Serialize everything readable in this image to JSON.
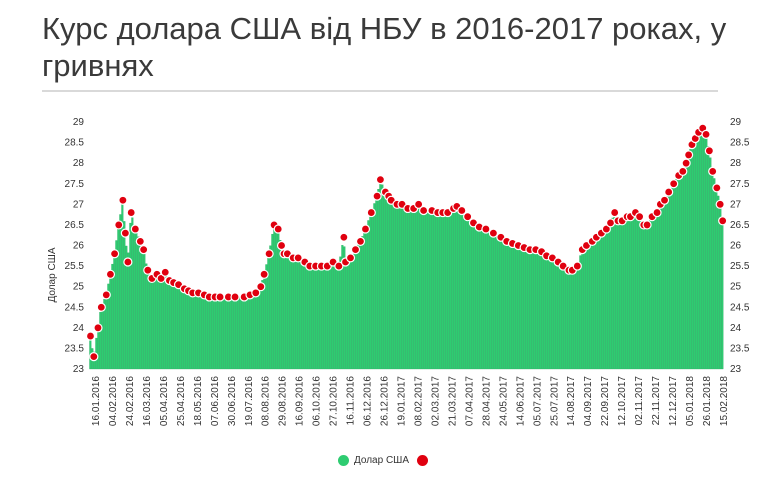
{
  "title": "Курс долара США від НБУ в 2016-2017 роках, у гривнях",
  "chart_data": {
    "type": "area",
    "ylabel": "Долар США",
    "ylim": [
      23,
      29
    ],
    "yticks": [
      "23",
      "23.5",
      "24",
      "24.5",
      "25",
      "25.5",
      "26",
      "26.5",
      "27",
      "27.5",
      "28",
      "28.5",
      "29"
    ],
    "xticks": [
      "16.01.2016",
      "04.02.2016",
      "24.02.2016",
      "16.03.2016",
      "05.04.2016",
      "25.04.2016",
      "18.05.2016",
      "07.06.2016",
      "30.06.2016",
      "19.07.2016",
      "08.08.2016",
      "29.08.2016",
      "16.09.2016",
      "06.10.2016",
      "27.10.2016",
      "16.11.2016",
      "06.12.2016",
      "26.12.2016",
      "19.01.2017",
      "08.02.2017",
      "02.03.2017",
      "21.03.2017",
      "07.04.2017",
      "28.04.2017",
      "24.05.2017",
      "14.06.2017",
      "05.07.2017",
      "25.07.2017",
      "14.08.2017",
      "04.09.2017",
      "22.09.2017",
      "12.10.2017",
      "02.11.2017",
      "22.11.2017",
      "12.12.2017",
      "05.01.2018",
      "26.01.2018",
      "15.02.2018"
    ],
    "series": [
      {
        "name": "Долар США",
        "color_fill": "#2ecc71",
        "color_marker": "#e0000f",
        "x": [
          "2016-01-16",
          "2016-01-20",
          "2016-01-25",
          "2016-01-29",
          "2016-02-04",
          "2016-02-09",
          "2016-02-14",
          "2016-02-19",
          "2016-02-24",
          "2016-02-27",
          "2016-03-01",
          "2016-03-05",
          "2016-03-10",
          "2016-03-16",
          "2016-03-20",
          "2016-03-25",
          "2016-03-30",
          "2016-04-05",
          "2016-04-10",
          "2016-04-15",
          "2016-04-20",
          "2016-04-25",
          "2016-05-01",
          "2016-05-08",
          "2016-05-13",
          "2016-05-18",
          "2016-05-25",
          "2016-06-01",
          "2016-06-07",
          "2016-06-14",
          "2016-06-20",
          "2016-06-30",
          "2016-07-08",
          "2016-07-19",
          "2016-07-26",
          "2016-08-02",
          "2016-08-08",
          "2016-08-12",
          "2016-08-18",
          "2016-08-24",
          "2016-08-29",
          "2016-09-02",
          "2016-09-05",
          "2016-09-09",
          "2016-09-16",
          "2016-09-22",
          "2016-09-30",
          "2016-10-06",
          "2016-10-13",
          "2016-10-20",
          "2016-10-27",
          "2016-11-03",
          "2016-11-10",
          "2016-11-16",
          "2016-11-18",
          "2016-11-24",
          "2016-11-30",
          "2016-12-06",
          "2016-12-12",
          "2016-12-19",
          "2016-12-26",
          "2016-12-30",
          "2017-01-05",
          "2017-01-09",
          "2017-01-12",
          "2017-01-19",
          "2017-01-25",
          "2017-02-01",
          "2017-02-08",
          "2017-02-14",
          "2017-02-20",
          "2017-03-02",
          "2017-03-09",
          "2017-03-15",
          "2017-03-21",
          "2017-03-28",
          "2017-04-01",
          "2017-04-07",
          "2017-04-14",
          "2017-04-21",
          "2017-04-28",
          "2017-05-06",
          "2017-05-15",
          "2017-05-24",
          "2017-05-31",
          "2017-06-07",
          "2017-06-14",
          "2017-06-21",
          "2017-06-28",
          "2017-07-05",
          "2017-07-12",
          "2017-07-18",
          "2017-07-25",
          "2017-08-01",
          "2017-08-07",
          "2017-08-14",
          "2017-08-18",
          "2017-08-24",
          "2017-08-30",
          "2017-09-04",
          "2017-09-11",
          "2017-09-16",
          "2017-09-22",
          "2017-09-28",
          "2017-10-03",
          "2017-10-08",
          "2017-10-12",
          "2017-10-17",
          "2017-10-23",
          "2017-10-27",
          "2017-11-02",
          "2017-11-07",
          "2017-11-12",
          "2017-11-16",
          "2017-11-22",
          "2017-11-28",
          "2017-12-02",
          "2017-12-07",
          "2017-12-12",
          "2017-12-18",
          "2017-12-24",
          "2017-12-29",
          "2018-01-02",
          "2018-01-05",
          "2018-01-09",
          "2018-01-13",
          "2018-01-17",
          "2018-01-22",
          "2018-01-26",
          "2018-01-30",
          "2018-02-03",
          "2018-02-08",
          "2018-02-12",
          "2018-02-15"
        ],
        "y": [
          23.8,
          23.3,
          24.0,
          24.5,
          24.8,
          25.3,
          25.8,
          26.5,
          27.1,
          26.3,
          25.6,
          26.8,
          26.4,
          26.1,
          25.9,
          25.4,
          25.2,
          25.3,
          25.2,
          25.35,
          25.15,
          25.1,
          25.05,
          24.95,
          24.9,
          24.85,
          24.85,
          24.8,
          24.75,
          24.75,
          24.75,
          24.75,
          24.75,
          24.75,
          24.8,
          24.85,
          25.0,
          25.3,
          25.8,
          26.5,
          26.4,
          26.0,
          25.8,
          25.8,
          25.7,
          25.7,
          25.6,
          25.5,
          25.5,
          25.5,
          25.5,
          25.6,
          25.5,
          26.2,
          25.6,
          25.7,
          25.9,
          26.1,
          26.4,
          26.8,
          27.2,
          27.6,
          27.3,
          27.2,
          27.1,
          27.0,
          27.0,
          26.9,
          26.9,
          27.0,
          26.85,
          26.85,
          26.8,
          26.8,
          26.8,
          26.9,
          26.95,
          26.85,
          26.7,
          26.55,
          26.45,
          26.4,
          26.3,
          26.2,
          26.1,
          26.05,
          26.0,
          25.95,
          25.9,
          25.9,
          25.85,
          25.75,
          25.7,
          25.6,
          25.5,
          25.4,
          25.4,
          25.5,
          25.9,
          26.0,
          26.1,
          26.2,
          26.3,
          26.4,
          26.55,
          26.8,
          26.6,
          26.6,
          26.7,
          26.7,
          26.8,
          26.7,
          26.5,
          26.5,
          26.7,
          26.8,
          27.0,
          27.1,
          27.3,
          27.5,
          27.7,
          27.8,
          28.0,
          28.2,
          28.45,
          28.6,
          28.75,
          28.85,
          28.7,
          28.3,
          27.8,
          27.4,
          27.0,
          26.6
        ]
      }
    ],
    "legend": "bottom-center",
    "grid": false
  }
}
